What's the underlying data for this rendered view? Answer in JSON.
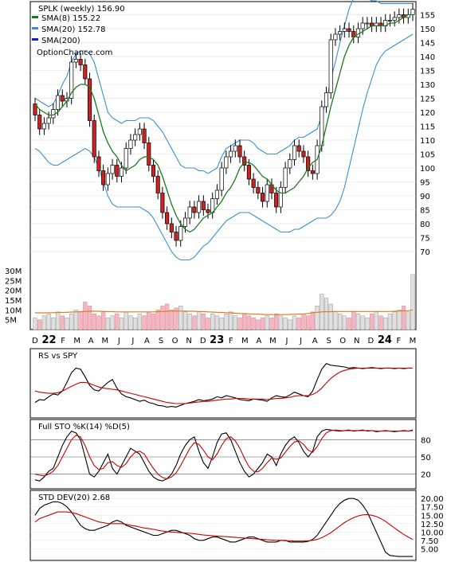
{
  "chart_data": [
    {
      "type": "candlestick",
      "panel": "price",
      "title": "SPLK (weekly) 156.90",
      "legend": [
        {
          "name": "SMA(8) 155.22",
          "color": "#1a7a1a"
        },
        {
          "name": "SMA(20) 152.78",
          "color": "#3a8fd6"
        },
        {
          "name": "SMA(200)",
          "color": "#1a1acc"
        }
      ],
      "watermark": "OptionChance.com",
      "y_ticks": [
        "70",
        "75",
        "80",
        "85",
        "90",
        "95",
        "100",
        "105",
        "110",
        "115",
        "120",
        "125",
        "130",
        "135",
        "140",
        "145",
        "150",
        "155"
      ],
      "ylim": [
        66,
        158
      ],
      "x_ticks": [
        "D",
        "22",
        "F",
        "M",
        "A",
        "M",
        "J",
        "J",
        "A",
        "S",
        "O",
        "N",
        "D",
        "23",
        "F",
        "M",
        "A",
        "M",
        "J",
        "J",
        "A",
        "S",
        "O",
        "N",
        "D",
        "24",
        "F",
        "M"
      ],
      "last_price": 156.9,
      "close": [
        119,
        114,
        116,
        118,
        121,
        126,
        124,
        125,
        138,
        139,
        137,
        132,
        117,
        104,
        99,
        94,
        98,
        101,
        97,
        100,
        107,
        110,
        112,
        114,
        109,
        101,
        97,
        91,
        84,
        80,
        77,
        74,
        79,
        82,
        86,
        84,
        88,
        85,
        84,
        89,
        92,
        100,
        104,
        106,
        108,
        104,
        101,
        96,
        93,
        91,
        88,
        94,
        91,
        86,
        93,
        100,
        103,
        108,
        106,
        104,
        99,
        98,
        108,
        122,
        127,
        146,
        148,
        149,
        150,
        149,
        147,
        150,
        152,
        152,
        151,
        152,
        151,
        153,
        153,
        154,
        155,
        154,
        155,
        157
      ],
      "sma8": [
        123,
        121,
        120,
        119,
        119,
        120,
        122,
        124,
        127,
        129,
        130,
        130,
        129,
        125,
        119,
        113,
        109,
        106,
        104,
        101,
        99,
        100,
        101,
        103,
        104,
        104,
        103,
        101,
        97,
        92,
        87,
        83,
        80,
        78,
        77,
        78,
        80,
        82,
        83,
        84,
        86,
        88,
        91,
        93,
        96,
        100,
        102,
        102,
        101,
        99,
        97,
        96,
        94,
        92,
        91,
        91,
        92,
        93,
        95,
        97,
        100,
        102,
        103,
        108,
        115,
        122,
        128,
        134,
        140,
        144,
        147,
        148,
        149,
        150,
        151,
        151,
        151,
        151,
        152,
        152,
        153,
        154,
        155,
        155
      ],
      "bb_upper": [
        125,
        124,
        123,
        122,
        123,
        126,
        130,
        133,
        138,
        141,
        142,
        142,
        141,
        138,
        132,
        126,
        120,
        118,
        117,
        116,
        117,
        117,
        117,
        118,
        118,
        118,
        117,
        115,
        113,
        110,
        107,
        104,
        101,
        100,
        100,
        100,
        99,
        99,
        98,
        99,
        100,
        104,
        107,
        108,
        109,
        110,
        110,
        110,
        109,
        107,
        106,
        105,
        105,
        105,
        106,
        107,
        108,
        110,
        111,
        111,
        112,
        113,
        114,
        119,
        124,
        132,
        138,
        145,
        151,
        157,
        161,
        162,
        162,
        161,
        160,
        160,
        159,
        159,
        159,
        159,
        159,
        159,
        159,
        159
      ],
      "bb_lower": [
        107,
        106,
        104,
        102,
        101,
        101,
        102,
        103,
        104,
        105,
        106,
        107,
        106,
        104,
        100,
        95,
        90,
        87,
        86,
        86,
        86,
        86,
        86,
        86,
        85,
        84,
        82,
        79,
        76,
        73,
        70,
        68,
        67,
        67,
        67,
        68,
        70,
        72,
        73,
        75,
        77,
        79,
        81,
        82,
        83,
        84,
        84,
        84,
        83,
        82,
        81,
        80,
        79,
        78,
        77,
        77,
        77,
        78,
        78,
        79,
        80,
        81,
        82,
        82,
        82,
        83,
        85,
        88,
        93,
        100,
        107,
        114,
        121,
        127,
        132,
        137,
        140,
        142,
        143,
        144,
        145,
        146,
        147,
        148
      ],
      "volume_axis_ticks": [
        "5M",
        "10M",
        "15M",
        "20M",
        "25M",
        "30M"
      ],
      "volume_ylim": [
        0,
        32
      ],
      "volume_millions": [
        6,
        5,
        7,
        8,
        6,
        9,
        7,
        6,
        8,
        10,
        9,
        14,
        12,
        8,
        7,
        9,
        6,
        7,
        8,
        6,
        9,
        7,
        6,
        8,
        7,
        9,
        8,
        10,
        12,
        13,
        10,
        11,
        12,
        9,
        8,
        7,
        9,
        8,
        6,
        8,
        7,
        6,
        8,
        9,
        7,
        6,
        8,
        7,
        6,
        5,
        6,
        7,
        6,
        8,
        7,
        6,
        5,
        7,
        6,
        8,
        7,
        9,
        12,
        18,
        16,
        13,
        9,
        8,
        7,
        6,
        9,
        8,
        7,
        6,
        8,
        9,
        7,
        6,
        8,
        9,
        10,
        12,
        9,
        28
      ],
      "volume_avg_millions": [
        8.5,
        8.5,
        8.5,
        8.6,
        8.6,
        8.7,
        8.7,
        8.8,
        8.9,
        9,
        9.1,
        9.2,
        9.3,
        9.3,
        9.3,
        9.2,
        9.1,
        9.1,
        9,
        9,
        9,
        9,
        9,
        9,
        9,
        9,
        9,
        9.1,
        9.2,
        9.3,
        9.4,
        9.4,
        9.4,
        9.4,
        9.3,
        9.3,
        9.2,
        9.1,
        9,
        8.9,
        8.8,
        8.7,
        8.6,
        8.5,
        8.3,
        8.2,
        8.1,
        8,
        7.9,
        7.8,
        7.7,
        7.6,
        7.6,
        7.6,
        7.6,
        7.6,
        7.7,
        7.8,
        7.9,
        8,
        8.2,
        8.5,
        8.8,
        9,
        9.1,
        9.1,
        9.2,
        9.2,
        9.2,
        9.2,
        9.2,
        9.2,
        9.2,
        9.2,
        9.2,
        9.2,
        9.2,
        9.2,
        9.2,
        9.3,
        9.4,
        9.5,
        9.6,
        10
      ]
    },
    {
      "type": "line",
      "panel": "rs",
      "title": "RS vs SPY",
      "ylim": [
        0,
        100
      ],
      "series": [
        {
          "name": "",
          "color": "#000000",
          "values": [
            20,
            25,
            24,
            30,
            35,
            33,
            40,
            55,
            72,
            80,
            78,
            65,
            50,
            42,
            40,
            48,
            55,
            60,
            45,
            35,
            30,
            28,
            25,
            22,
            24,
            20,
            18,
            15,
            14,
            12,
            13,
            12,
            15,
            18,
            20,
            22,
            25,
            23,
            24,
            26,
            30,
            28,
            32,
            30,
            28,
            25,
            24,
            23,
            26,
            25,
            24,
            22,
            28,
            32,
            30,
            29,
            33,
            38,
            35,
            32,
            30,
            40,
            60,
            78,
            88,
            85,
            84,
            83,
            82,
            80,
            81,
            80,
            79,
            80,
            81,
            80,
            79,
            80,
            80,
            79,
            80,
            79,
            80,
            80
          ]
        },
        {
          "name": "",
          "color": "#cc0000",
          "values": [
            40,
            38,
            37,
            36,
            36,
            37,
            40,
            44,
            48,
            52,
            55,
            55,
            53,
            50,
            47,
            45,
            44,
            43,
            42,
            40,
            38,
            36,
            34,
            32,
            30,
            28,
            26,
            24,
            22,
            20,
            19,
            18,
            18,
            18,
            19,
            20,
            21,
            22,
            22,
            23,
            24,
            25,
            26,
            26,
            27,
            27,
            27,
            26,
            26,
            26,
            26,
            25,
            26,
            27,
            27,
            28,
            29,
            31,
            32,
            32,
            32,
            34,
            38,
            45,
            54,
            62,
            68,
            73,
            76,
            78,
            79,
            80,
            80,
            80,
            80,
            80,
            80,
            80,
            80,
            80,
            80,
            80,
            80,
            80
          ]
        }
      ]
    },
    {
      "type": "line",
      "panel": "stochastic",
      "title": "Full STO %K(14) %D(5)",
      "y_ticks": [
        "20",
        "50",
        "80"
      ],
      "ylim": [
        0,
        100
      ],
      "series": [
        {
          "name": "",
          "color": "#000000",
          "values": [
            10,
            8,
            15,
            25,
            30,
            50,
            70,
            85,
            95,
            92,
            80,
            50,
            20,
            15,
            25,
            40,
            55,
            30,
            20,
            35,
            50,
            65,
            60,
            55,
            40,
            25,
            15,
            10,
            8,
            12,
            20,
            35,
            55,
            70,
            80,
            85,
            60,
            40,
            30,
            50,
            75,
            90,
            92,
            80,
            60,
            40,
            25,
            15,
            20,
            30,
            40,
            55,
            50,
            35,
            55,
            70,
            80,
            85,
            75,
            60,
            50,
            60,
            85,
            95,
            98,
            97,
            96,
            95,
            96,
            97,
            95,
            96,
            97,
            95,
            96,
            94,
            95,
            96,
            95,
            94,
            95,
            96,
            95,
            97
          ]
        },
        {
          "name": "",
          "color": "#cc0000",
          "values": [
            20,
            18,
            17,
            20,
            25,
            35,
            50,
            65,
            80,
            88,
            85,
            70,
            50,
            35,
            28,
            30,
            40,
            42,
            35,
            32,
            38,
            50,
            58,
            60,
            55,
            42,
            30,
            20,
            14,
            12,
            15,
            22,
            35,
            50,
            65,
            75,
            72,
            62,
            50,
            45,
            55,
            70,
            82,
            85,
            78,
            65,
            48,
            33,
            25,
            24,
            30,
            40,
            48,
            46,
            48,
            58,
            68,
            76,
            78,
            72,
            62,
            58,
            68,
            82,
            92,
            96,
            97,
            96,
            96,
            96,
            96,
            96,
            96,
            96,
            96,
            95,
            95,
            95,
            95,
            95,
            95,
            95,
            95,
            96
          ]
        }
      ]
    },
    {
      "type": "line",
      "panel": "std_dev",
      "title": "STD DEV(20) 2.68",
      "y_ticks": [
        "5.00",
        "7.50",
        "10.00",
        "12.50",
        "15.00",
        "17.50",
        "20.00"
      ],
      "ylim": [
        2,
        21
      ],
      "series": [
        {
          "name": "",
          "color": "#000000",
          "values": [
            15,
            17,
            18,
            18.5,
            19,
            19,
            18.5,
            17.5,
            16,
            14,
            12,
            11,
            10.5,
            10.5,
            11,
            11.5,
            12,
            13,
            13.5,
            13,
            12,
            11.5,
            11,
            10.5,
            10,
            9.5,
            9,
            9,
            9.5,
            10,
            10.5,
            10.5,
            10,
            9.5,
            9,
            8,
            7.5,
            7.5,
            8,
            8.5,
            8.5,
            8,
            7.5,
            7,
            7,
            7.5,
            8,
            8.5,
            8.5,
            8,
            7.5,
            7,
            7,
            7,
            7.5,
            7.5,
            7,
            7,
            7,
            7,
            7.2,
            7.8,
            9,
            11,
            13,
            15,
            17,
            18.5,
            19.5,
            20,
            20,
            19.5,
            18,
            16,
            13,
            10,
            7,
            4,
            3,
            2.8,
            2.7,
            2.7,
            2.7,
            2.7
          ]
        },
        {
          "name": "",
          "color": "#cc0000",
          "values": [
            13,
            14,
            14.5,
            15,
            15.5,
            16,
            16,
            16,
            15.8,
            15.5,
            15,
            14.5,
            14,
            13.5,
            13,
            12.8,
            12.5,
            12.5,
            12.5,
            12.5,
            12.3,
            12,
            11.8,
            11.5,
            11.2,
            11,
            10.8,
            10.5,
            10.3,
            10.1,
            10,
            9.9,
            9.8,
            9.7,
            9.6,
            9.5,
            9.3,
            9.1,
            9,
            8.9,
            8.8,
            8.7,
            8.6,
            8.5,
            8.4,
            8.3,
            8.2,
            8.1,
            8,
            7.9,
            7.8,
            7.7,
            7.6,
            7.5,
            7.5,
            7.4,
            7.4,
            7.3,
            7.3,
            7.3,
            7.4,
            7.5,
            7.8,
            8.3,
            9,
            9.8,
            10.8,
            11.8,
            12.8,
            13.6,
            14.3,
            14.8,
            15.1,
            15.2,
            15,
            14.6,
            14,
            13.2,
            12.2,
            11.2,
            10.2,
            9.3,
            8.5,
            7.8
          ]
        }
      ]
    }
  ]
}
